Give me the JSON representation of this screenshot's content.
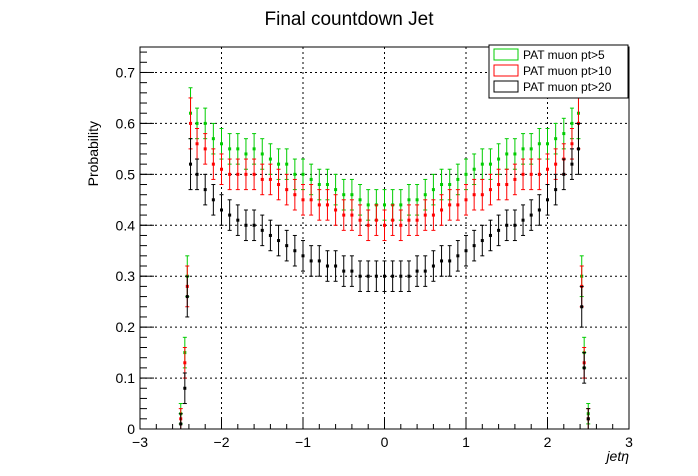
{
  "chart_data": {
    "type": "scatter",
    "title": "Final countdown Jet",
    "xlabel": "jetη",
    "ylabel": "Probability",
    "xlim": [
      -3,
      3
    ],
    "ylim": [
      0,
      0.75
    ],
    "x_ticks": [
      "−3",
      "−2",
      "−1",
      "0",
      "1",
      "2",
      "3"
    ],
    "y_ticks": [
      "0",
      "0.1",
      "0.2",
      "0.3",
      "0.4",
      "0.5",
      "0.6",
      "0.7"
    ],
    "grid": true,
    "legend_position": "top-right",
    "x": [
      -2.5,
      -2.45,
      -2.42,
      -2.38,
      -2.3,
      -2.2,
      -2.1,
      -2.0,
      -1.9,
      -1.8,
      -1.7,
      -1.6,
      -1.5,
      -1.4,
      -1.3,
      -1.2,
      -1.1,
      -1.0,
      -0.9,
      -0.8,
      -0.7,
      -0.6,
      -0.5,
      -0.4,
      -0.3,
      -0.2,
      -0.1,
      0.0,
      0.1,
      0.2,
      0.3,
      0.4,
      0.5,
      0.6,
      0.7,
      0.8,
      0.9,
      1.0,
      1.1,
      1.2,
      1.3,
      1.4,
      1.5,
      1.6,
      1.7,
      1.8,
      1.9,
      2.0,
      2.1,
      2.2,
      2.3,
      2.38,
      2.42,
      2.45,
      2.5
    ],
    "series": [
      {
        "name": "PAT muon pt>5",
        "color": "#00cc00",
        "values": [
          0.03,
          0.15,
          0.3,
          0.62,
          0.6,
          0.6,
          0.57,
          0.56,
          0.55,
          0.55,
          0.54,
          0.55,
          0.54,
          0.53,
          0.52,
          0.52,
          0.5,
          0.5,
          0.49,
          0.48,
          0.48,
          0.47,
          0.46,
          0.46,
          0.45,
          0.44,
          0.44,
          0.44,
          0.44,
          0.44,
          0.45,
          0.45,
          0.46,
          0.47,
          0.48,
          0.48,
          0.49,
          0.5,
          0.51,
          0.52,
          0.52,
          0.53,
          0.54,
          0.54,
          0.55,
          0.55,
          0.56,
          0.56,
          0.57,
          0.58,
          0.6,
          0.62,
          0.3,
          0.15,
          0.03
        ],
        "errors": [
          0.02,
          0.03,
          0.04,
          0.05,
          0.03,
          0.03,
          0.03,
          0.03,
          0.03,
          0.03,
          0.03,
          0.03,
          0.03,
          0.03,
          0.03,
          0.03,
          0.03,
          0.03,
          0.03,
          0.03,
          0.03,
          0.03,
          0.03,
          0.03,
          0.03,
          0.03,
          0.03,
          0.03,
          0.03,
          0.03,
          0.03,
          0.03,
          0.03,
          0.03,
          0.03,
          0.03,
          0.03,
          0.03,
          0.03,
          0.03,
          0.03,
          0.03,
          0.03,
          0.03,
          0.03,
          0.03,
          0.03,
          0.03,
          0.03,
          0.03,
          0.03,
          0.05,
          0.04,
          0.03,
          0.02
        ]
      },
      {
        "name": "PAT muon pt>10",
        "color": "#ff0000",
        "values": [
          0.02,
          0.13,
          0.28,
          0.6,
          0.56,
          0.55,
          0.52,
          0.51,
          0.5,
          0.5,
          0.5,
          0.5,
          0.49,
          0.49,
          0.48,
          0.47,
          0.46,
          0.45,
          0.45,
          0.44,
          0.44,
          0.43,
          0.42,
          0.42,
          0.41,
          0.4,
          0.41,
          0.4,
          0.41,
          0.4,
          0.41,
          0.41,
          0.42,
          0.42,
          0.43,
          0.44,
          0.44,
          0.45,
          0.46,
          0.46,
          0.47,
          0.48,
          0.48,
          0.49,
          0.5,
          0.5,
          0.5,
          0.51,
          0.52,
          0.53,
          0.56,
          0.6,
          0.28,
          0.13,
          0.02
        ],
        "errors": [
          0.02,
          0.03,
          0.04,
          0.05,
          0.03,
          0.03,
          0.03,
          0.03,
          0.03,
          0.03,
          0.03,
          0.03,
          0.03,
          0.03,
          0.03,
          0.03,
          0.03,
          0.03,
          0.03,
          0.03,
          0.03,
          0.03,
          0.03,
          0.03,
          0.03,
          0.03,
          0.03,
          0.03,
          0.03,
          0.03,
          0.03,
          0.03,
          0.03,
          0.03,
          0.03,
          0.03,
          0.03,
          0.03,
          0.03,
          0.03,
          0.03,
          0.03,
          0.03,
          0.03,
          0.03,
          0.03,
          0.03,
          0.03,
          0.03,
          0.03,
          0.03,
          0.05,
          0.04,
          0.03,
          0.02
        ]
      },
      {
        "name": "PAT muon pt>20",
        "color": "#000000",
        "values": [
          0.01,
          0.08,
          0.26,
          0.52,
          0.5,
          0.47,
          0.45,
          0.43,
          0.42,
          0.41,
          0.4,
          0.4,
          0.39,
          0.38,
          0.37,
          0.36,
          0.35,
          0.34,
          0.33,
          0.33,
          0.32,
          0.32,
          0.31,
          0.31,
          0.3,
          0.3,
          0.3,
          0.3,
          0.3,
          0.3,
          0.3,
          0.31,
          0.31,
          0.32,
          0.33,
          0.33,
          0.34,
          0.35,
          0.36,
          0.37,
          0.38,
          0.39,
          0.4,
          0.4,
          0.41,
          0.42,
          0.43,
          0.45,
          0.47,
          0.5,
          0.52,
          0.55,
          0.24,
          0.12,
          0.02
        ],
        "errors": [
          0.02,
          0.03,
          0.04,
          0.05,
          0.03,
          0.03,
          0.03,
          0.03,
          0.03,
          0.03,
          0.03,
          0.03,
          0.03,
          0.03,
          0.03,
          0.03,
          0.03,
          0.03,
          0.03,
          0.03,
          0.03,
          0.03,
          0.03,
          0.03,
          0.03,
          0.03,
          0.03,
          0.03,
          0.03,
          0.03,
          0.03,
          0.03,
          0.03,
          0.03,
          0.03,
          0.03,
          0.03,
          0.03,
          0.03,
          0.03,
          0.03,
          0.03,
          0.03,
          0.03,
          0.03,
          0.03,
          0.03,
          0.03,
          0.03,
          0.03,
          0.03,
          0.05,
          0.04,
          0.03,
          0.02
        ]
      }
    ]
  }
}
